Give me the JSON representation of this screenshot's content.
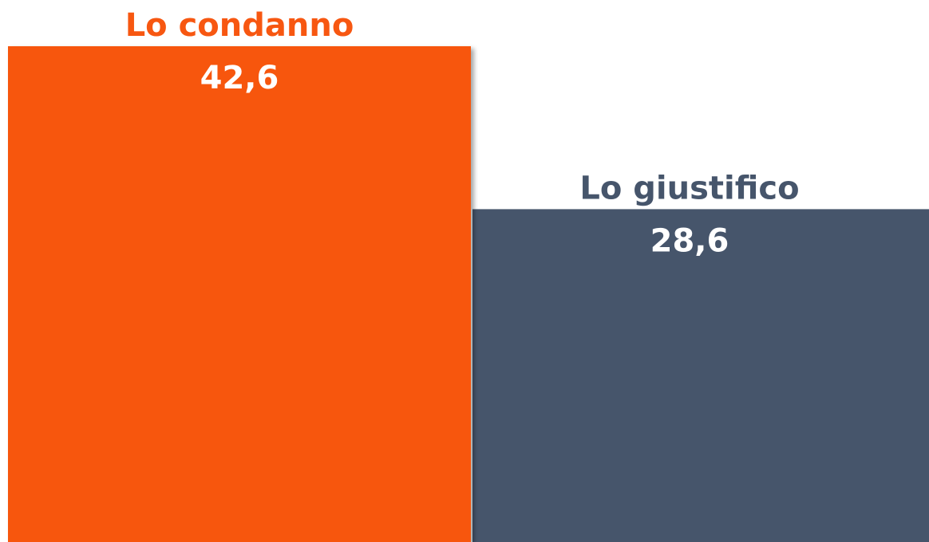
{
  "chart_data": {
    "type": "bar",
    "categories": [
      "Lo condanno",
      "Lo giustifico"
    ],
    "values": [
      42.6,
      28.6
    ],
    "value_labels": [
      "42,6",
      "28,6"
    ],
    "colors": [
      "#f75711",
      "#46556b"
    ]
  }
}
